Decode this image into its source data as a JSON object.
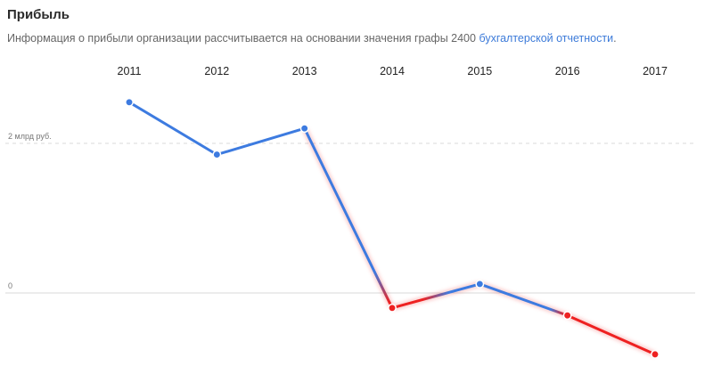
{
  "header": {
    "title": "Прибыль",
    "description_prefix": "Информация о прибыли организации рассчитывается на основании значения графы 2400 ",
    "description_link": "бухгалтерской отчетности",
    "description_suffix": "."
  },
  "colors": {
    "positive": "#3d7be0",
    "negative": "#ee2222",
    "grid": "#d9d9d9"
  },
  "chart_data": {
    "type": "line",
    "categories": [
      "2011",
      "2012",
      "2013",
      "2014",
      "2015",
      "2016",
      "2017"
    ],
    "series": [
      {
        "values": [
          2.55,
          1.85,
          2.2,
          -0.2,
          0.12,
          -0.3,
          -0.82
        ]
      }
    ],
    "yticks": [
      {
        "value": 2,
        "label": "2 млрд руб."
      },
      {
        "value": 0,
        "label": "0"
      }
    ],
    "ylim": [
      -0.95,
      3.05
    ],
    "grid": true
  }
}
